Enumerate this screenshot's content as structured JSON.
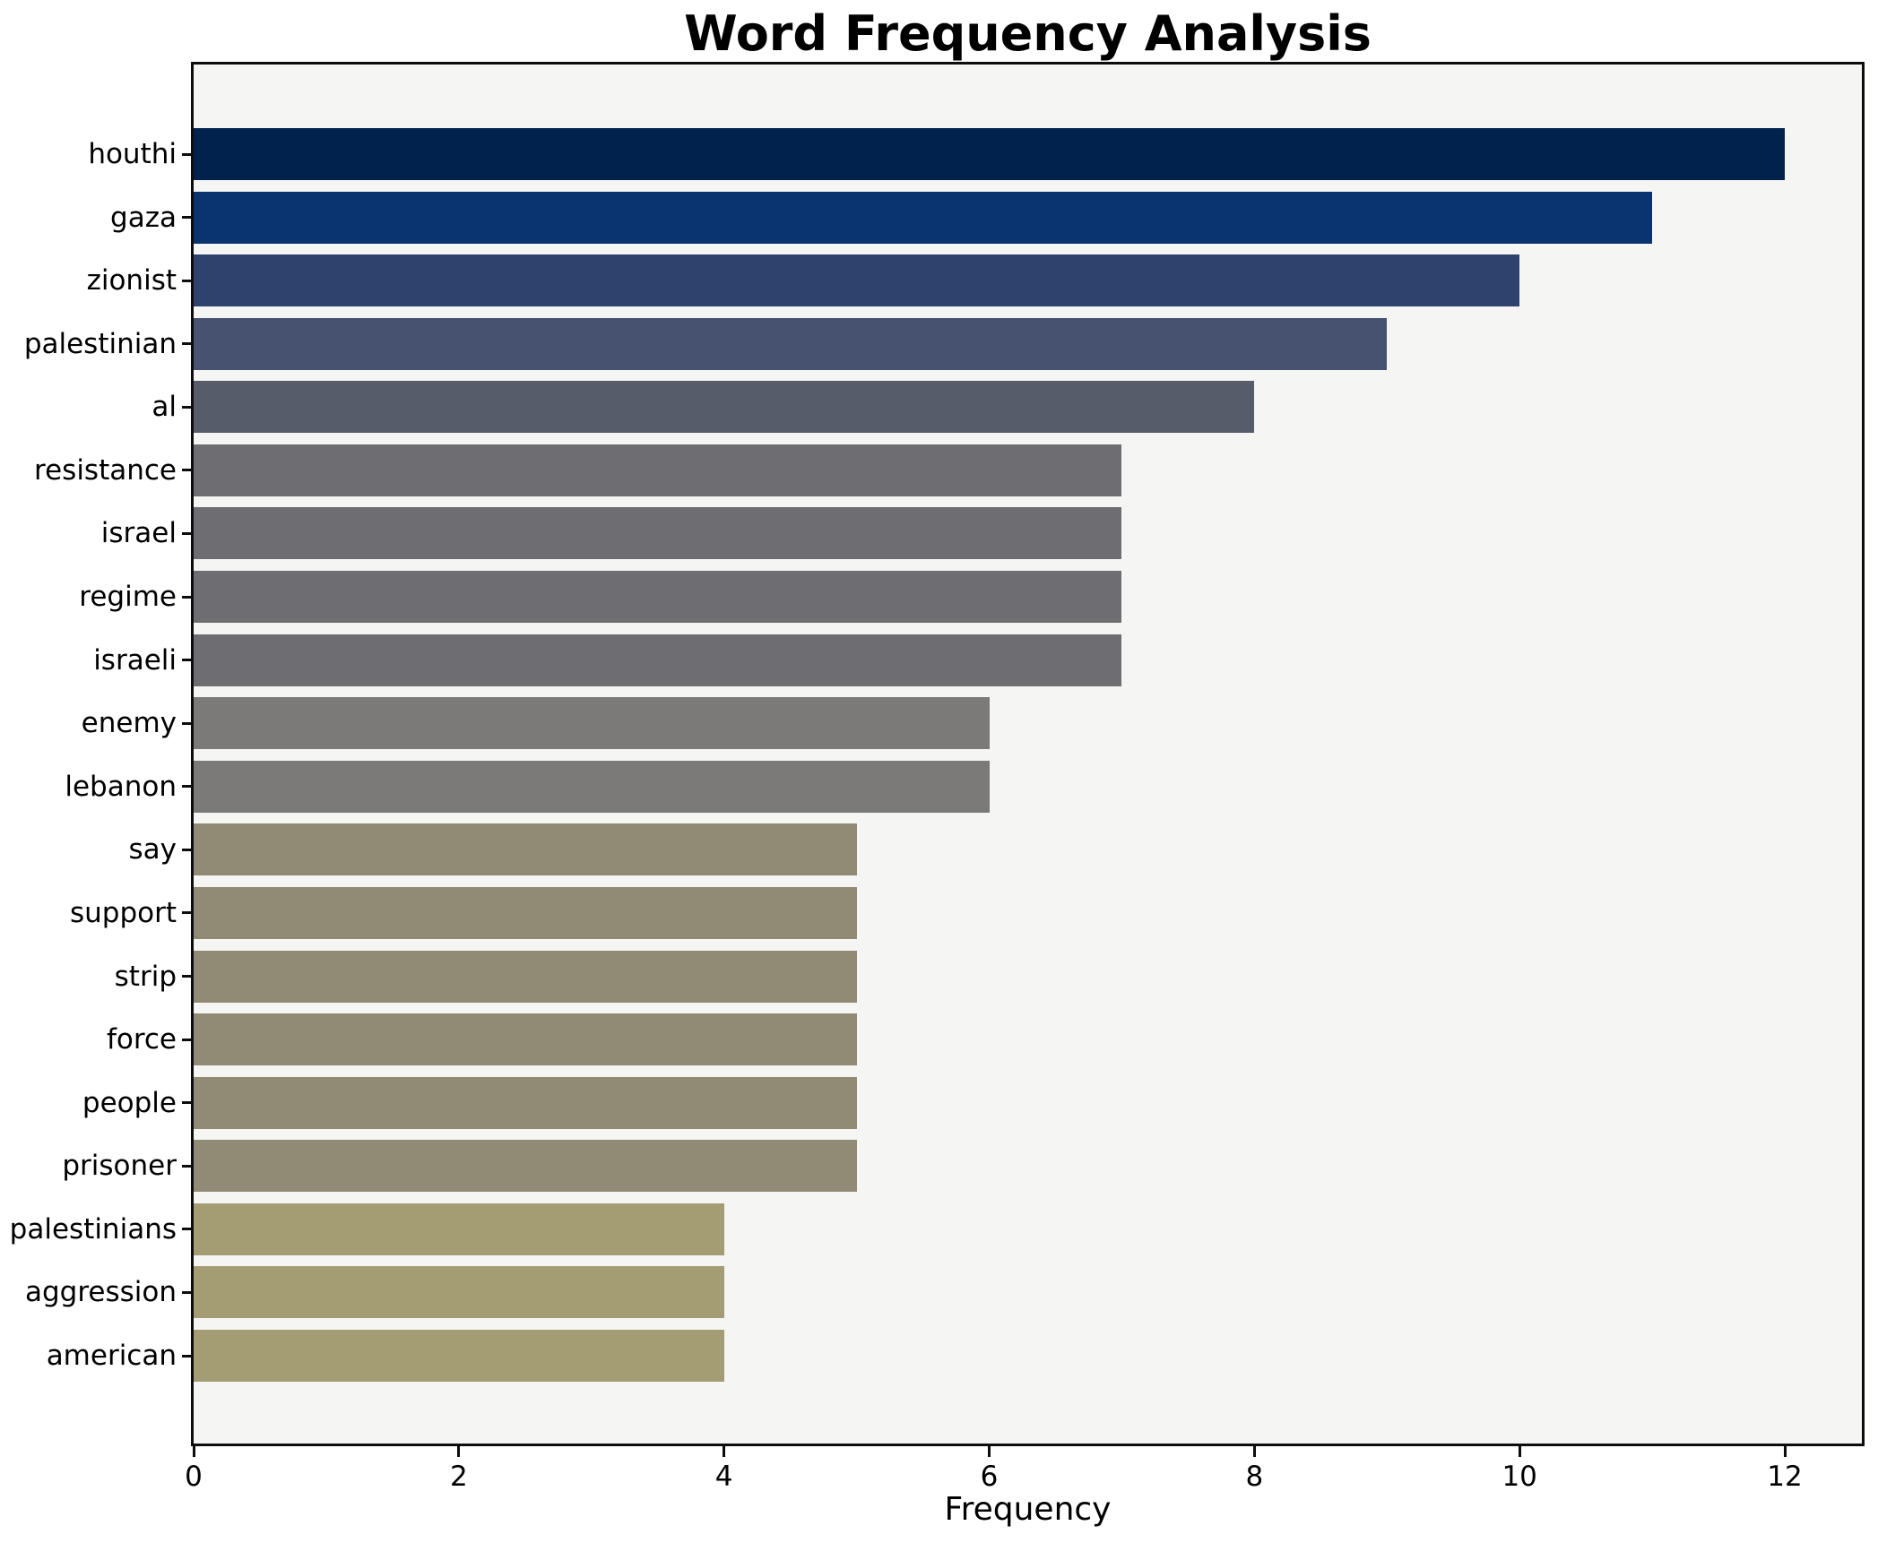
{
  "chart_data": {
    "type": "bar",
    "orientation": "horizontal",
    "title": "Word Frequency Analysis",
    "xlabel": "Frequency",
    "ylabel": "",
    "categories": [
      "houthi",
      "gaza",
      "zionist",
      "palestinian",
      "al",
      "resistance",
      "israel",
      "regime",
      "israeli",
      "enemy",
      "lebanon",
      "say",
      "support",
      "strip",
      "force",
      "people",
      "prisoner",
      "palestinians",
      "aggression",
      "american"
    ],
    "values": [
      12,
      11,
      10,
      9,
      8,
      7,
      7,
      7,
      7,
      6,
      6,
      5,
      5,
      5,
      5,
      5,
      5,
      4,
      4,
      4
    ],
    "bar_colors": [
      "#02224e",
      "#0a346f",
      "#2f426e",
      "#465270",
      "#575c6b",
      "#6e6d71",
      "#6e6d71",
      "#6e6d71",
      "#6e6d71",
      "#7b7a78",
      "#7b7a78",
      "#918a75",
      "#918a75",
      "#918a75",
      "#918a75",
      "#918a75",
      "#918a75",
      "#a49c72",
      "#a49c72",
      "#a49c72"
    ],
    "x_ticks": [
      0,
      2,
      4,
      6,
      8,
      10,
      12
    ],
    "xlim": [
      0,
      12.6
    ],
    "grid": false,
    "legend": "none",
    "colors": {
      "plot_background": "#f5f5f4",
      "figure_background": "#ffffff",
      "spine": "#0d0d0d",
      "text": "#000000"
    }
  }
}
